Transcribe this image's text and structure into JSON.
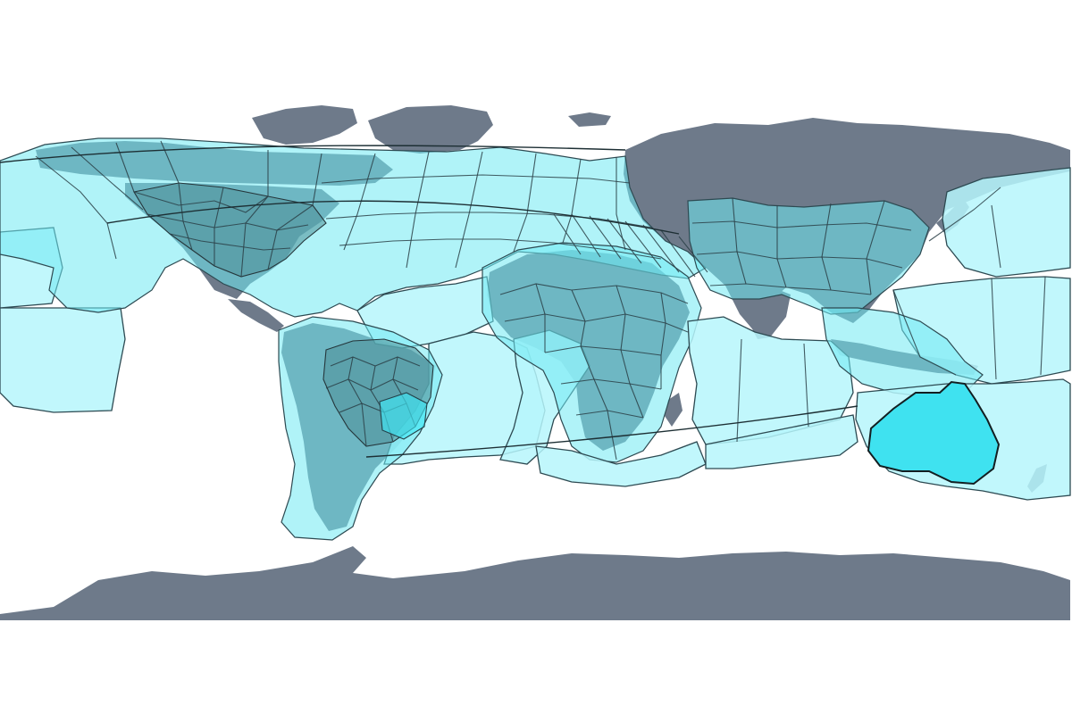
{
  "map": {
    "background": "#ffffff",
    "colors": {
      "land": "#6e7a8a",
      "coverage_light": "#b6f6fb",
      "coverage_mid": "#6feaf2",
      "coverage_bright": "#3fe6f4",
      "cell_border": "#2a3f46"
    },
    "layers": [
      "land-masses",
      "coverage-zones",
      "hexagonal-cells",
      "orbit-tracks"
    ]
  }
}
